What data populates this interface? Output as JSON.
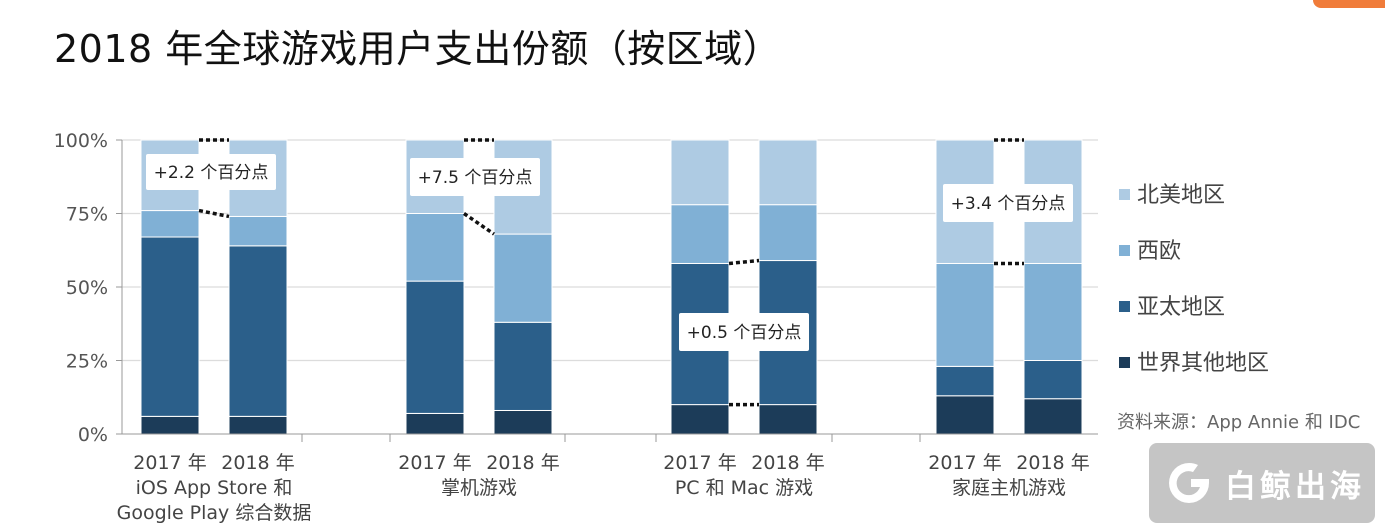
{
  "title": "2018 年全球游戏用户支出份额（按区域）",
  "source": "资料来源：App Annie 和 IDC",
  "watermark": "白鲸出海",
  "colors": {
    "北美地区": "#aecbe3",
    "西欧": "#80b0d5",
    "亚太地区": "#2b5f8a",
    "世界其他地区": "#1c3c59"
  },
  "chart_data": {
    "type": "bar",
    "stacked": true,
    "ylim": [
      0,
      100
    ],
    "yticks": [
      0,
      25,
      50,
      75,
      100
    ],
    "ytick_labels": [
      "0%",
      "25%",
      "50%",
      "75%",
      "100%"
    ],
    "grid": true,
    "legend_position": "right",
    "groups": [
      {
        "label": [
          "iOS App Store 和",
          "Google Play 综合数据"
        ],
        "bars": [
          {
            "year": "2017 年",
            "values": {
              "世界其他地区": 6,
              "亚太地区": 61,
              "西欧": 9,
              "北美地区": 24
            }
          },
          {
            "year": "2018 年",
            "values": {
              "世界其他地区": 6,
              "亚太地区": 58,
              "西欧": 10,
              "北美地区": 26
            }
          }
        ],
        "annotation": "+2.2 个百分点"
      },
      {
        "label": [
          "掌机游戏"
        ],
        "bars": [
          {
            "year": "2017 年",
            "values": {
              "世界其他地区": 7,
              "亚太地区": 45,
              "西欧": 23,
              "北美地区": 25
            }
          },
          {
            "year": "2018 年",
            "values": {
              "世界其他地区": 8,
              "亚太地区": 30,
              "西欧": 30,
              "北美地区": 32
            }
          }
        ],
        "annotation": "+7.5 个百分点"
      },
      {
        "label": [
          "PC 和 Mac 游戏"
        ],
        "bars": [
          {
            "year": "2017 年",
            "values": {
              "世界其他地区": 10,
              "亚太地区": 48,
              "西欧": 20,
              "北美地区": 22
            }
          },
          {
            "year": "2018 年",
            "values": {
              "世界其他地区": 10,
              "亚太地区": 49,
              "西欧": 19,
              "北美地区": 22
            }
          }
        ],
        "annotation": "+0.5 个百分点"
      },
      {
        "label": [
          "家庭主机游戏"
        ],
        "bars": [
          {
            "year": "2017 年",
            "values": {
              "世界其他地区": 13,
              "亚太地区": 10,
              "西欧": 35,
              "北美地区": 42
            }
          },
          {
            "year": "2018 年",
            "values": {
              "世界其他地区": 12,
              "亚太地区": 13,
              "西欧": 33,
              "北美地区": 42
            }
          }
        ],
        "annotation": "+3.4 个百分点"
      }
    ],
    "series_order": [
      "世界其他地区",
      "亚太地区",
      "西欧",
      "北美地区"
    ],
    "legend": [
      "北美地区",
      "西欧",
      "亚太地区",
      "世界其他地区"
    ]
  }
}
